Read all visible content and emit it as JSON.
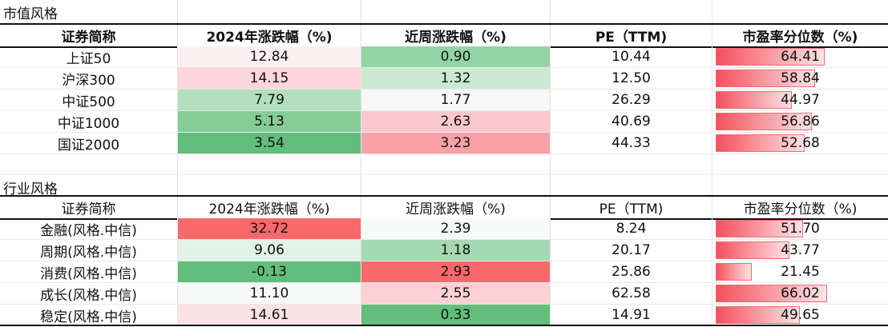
{
  "sections": [
    {
      "title": "市值风格",
      "headers": [
        "证券简称",
        "2024年涨跌幅（%)",
        "近周涨跌幅（%)",
        "PE（TTM)",
        "市盈率分位数（%)"
      ],
      "rows": [
        {
          "name": "上证50",
          "ytd": "12.84",
          "week": "0.90",
          "pe": "10.44",
          "pct": "64.41",
          "ytd_bg": "#fdf0f3",
          "week_bg": "#94d3a4",
          "pct_val": 64.41
        },
        {
          "name": "沪深300",
          "ytd": "14.15",
          "week": "1.32",
          "pe": "12.50",
          "pct": "58.84",
          "ytd_bg": "#fcd6da",
          "week_bg": "#cbe9d2",
          "pct_val": 58.84
        },
        {
          "name": "中证500",
          "ytd": "7.79",
          "week": "1.77",
          "pe": "26.29",
          "pct": "44.97",
          "ytd_bg": "#b2dfbd",
          "week_bg": "#f6f9f7",
          "pct_val": 44.97
        },
        {
          "name": "中证1000",
          "ytd": "5.13",
          "week": "2.63",
          "pe": "40.69",
          "pct": "56.86",
          "ytd_bg": "#86cc97",
          "week_bg": "#fbc9cd",
          "pct_val": 56.86
        },
        {
          "name": "国证2000",
          "ytd": "3.54",
          "week": "3.23",
          "pe": "44.33",
          "pct": "52.68",
          "ytd_bg": "#63be7b",
          "week_bg": "#f8a1a7",
          "pct_val": 52.68
        }
      ]
    },
    {
      "title": "行业风格",
      "headers": [
        "证券简称",
        "2024年涨跌幅（%)",
        "近周涨跌幅（%)",
        "PE（TTM)",
        "市盈率分位数（%)"
      ],
      "rows": [
        {
          "name": "金融(风格.中信)",
          "ytd": "32.72",
          "week": "2.39",
          "pe": "8.24",
          "pct": "51.70",
          "ytd_bg": "#f8696b",
          "week_bg": "#f8fafa",
          "pct_val": 51.7
        },
        {
          "name": "周期(风格.中信)",
          "ytd": "9.06",
          "week": "1.18",
          "pe": "20.17",
          "pct": "43.77",
          "ytd_bg": "#e2f2e6",
          "week_bg": "#a6d9b3",
          "pct_val": 43.77
        },
        {
          "name": "消费(风格.中信)",
          "ytd": "-0.13",
          "week": "2.93",
          "pe": "25.86",
          "pct": "21.45",
          "ytd_bg": "#63be7b",
          "week_bg": "#f8696b",
          "pct_val": 21.45
        },
        {
          "name": "成长(风格.中信)",
          "ytd": "11.10",
          "week": "2.55",
          "pe": "62.58",
          "pct": "66.02",
          "ytd_bg": "#f7f8f8",
          "week_bg": "#fcd0d4",
          "pct_val": 66.02
        },
        {
          "name": "稳定(风格.中信)",
          "ytd": "14.61",
          "week": "0.33",
          "pe": "14.91",
          "pct": "49.65",
          "ytd_bg": "#fbe2e5",
          "week_bg": "#63be7b",
          "pct_val": 49.65
        }
      ]
    }
  ]
}
